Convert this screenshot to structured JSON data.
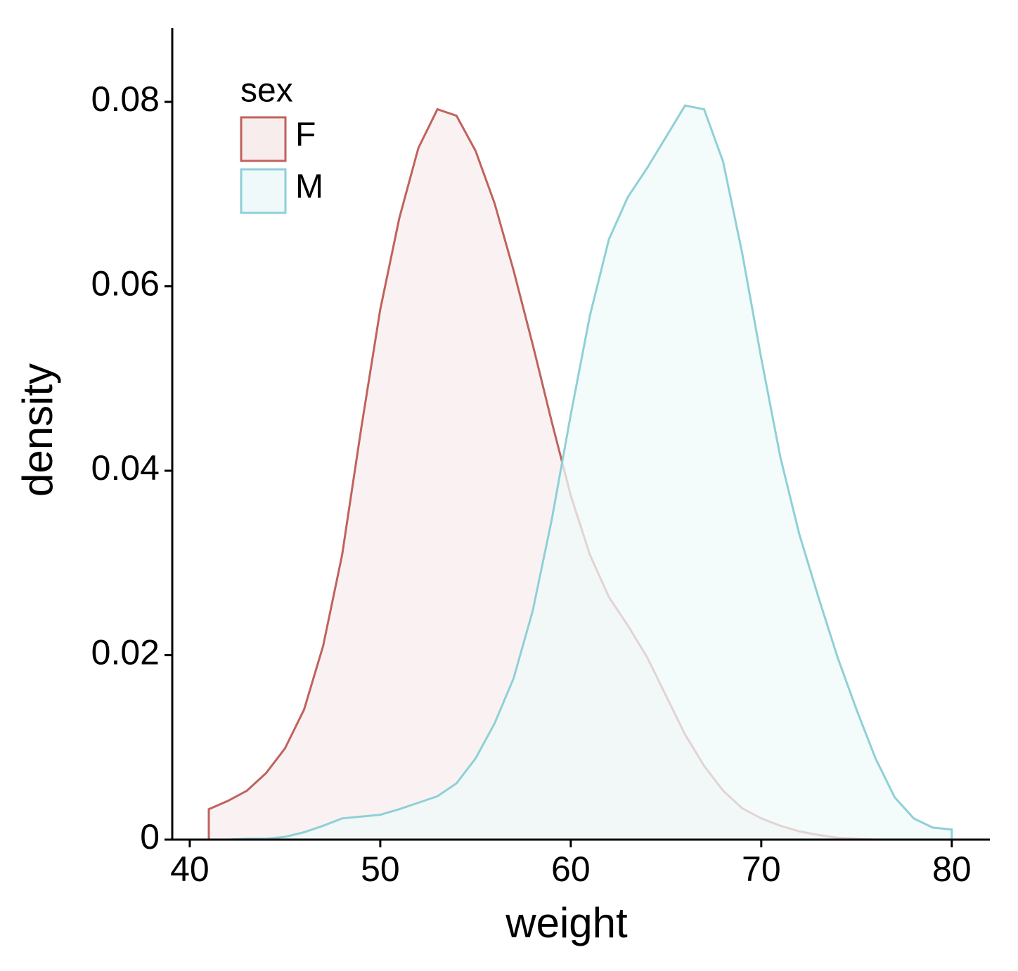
{
  "chart_data": {
    "type": "density",
    "x_label": "weight",
    "y_label": "density",
    "legend_title": "sex",
    "legend_position": "top-left",
    "x": [
      41,
      42,
      43,
      44,
      45,
      46,
      47,
      48,
      49,
      50,
      51,
      52,
      53,
      54,
      55,
      56,
      57,
      58,
      59,
      60,
      61,
      62,
      63,
      64,
      65,
      66,
      67,
      68,
      69,
      70,
      71,
      72,
      73,
      74,
      75,
      76,
      77,
      78,
      79,
      80
    ],
    "series": [
      {
        "name": "F",
        "color": "#c0625c",
        "fill_color": "#f8eded",
        "values": [
          0.0033,
          0.0042,
          0.0053,
          0.0072,
          0.0099,
          0.0141,
          0.021,
          0.0309,
          0.0446,
          0.0575,
          0.0674,
          0.075,
          0.0792,
          0.0785,
          0.0747,
          0.069,
          0.0617,
          0.0537,
          0.0453,
          0.0373,
          0.0309,
          0.0263,
          0.0232,
          0.0198,
          0.0156,
          0.0114,
          0.008,
          0.0053,
          0.0034,
          0.0023,
          0.0015,
          0.0009,
          0.0005,
          0.0002,
          0.0001,
          0,
          0,
          0,
          0,
          0
        ]
      },
      {
        "name": "M",
        "color": "#8fd0d6",
        "fill_color": "#eff9fa",
        "values": [
          0,
          0,
          0.0001,
          0.0001,
          0.0003,
          0.0008,
          0.0015,
          0.0023,
          0.0025,
          0.0027,
          0.0033,
          0.004,
          0.0047,
          0.0061,
          0.0088,
          0.0126,
          0.0175,
          0.0248,
          0.0347,
          0.0461,
          0.0568,
          0.0651,
          0.0697,
          0.0728,
          0.0762,
          0.0796,
          0.0792,
          0.0735,
          0.0636,
          0.0522,
          0.0415,
          0.0331,
          0.0263,
          0.0198,
          0.0141,
          0.0088,
          0.0046,
          0.0023,
          0.0013,
          0.0011
        ]
      }
    ],
    "xlim": [
      39.08,
      82
    ],
    "xticks": [
      40,
      50,
      60,
      70,
      80
    ],
    "ylim": [
      0,
      0.088
    ],
    "yticks": [
      0,
      0.02,
      0.04,
      0.06,
      0.08
    ],
    "grid": false
  }
}
